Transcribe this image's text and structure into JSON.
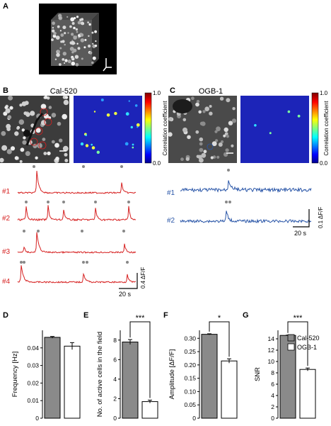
{
  "panels": {
    "A": {
      "label": "A"
    },
    "B": {
      "label": "B",
      "title": "Cal-520",
      "trace_labels": [
        "#1",
        "#2",
        "#3",
        "#4"
      ],
      "scale_y": "0.4 ΔF/F",
      "scale_x": "20 s",
      "colorbar_label": "Correlation coefficient",
      "colorbar_ticks": [
        "1.0",
        "0.0"
      ]
    },
    "C": {
      "label": "C",
      "title": "OGB-1",
      "trace_labels": [
        "#1",
        "#2"
      ],
      "scale_y": "0.1 ΔF/F",
      "scale_x": "20 s",
      "colorbar_label": "Correlation coefficient",
      "colorbar_ticks": [
        "1.0",
        "0.0"
      ]
    },
    "D": {
      "label": "D"
    },
    "E": {
      "label": "E"
    },
    "F": {
      "label": "F"
    },
    "G": {
      "label": "G"
    }
  },
  "legend": [
    "Cal-520",
    "OGB-1"
  ],
  "colors": {
    "cal520_trace": "#d62020",
    "ogb_trace": "#2a56a8",
    "cal520_bar": "#8a8a8a",
    "ogb_bar": "#ffffff",
    "event_dot": "#888888"
  },
  "chart_data": [
    {
      "type": "bar",
      "panel": "D",
      "categories": [
        "Cal-520",
        "OGB-1"
      ],
      "values": [
        0.046,
        0.041
      ],
      "errors": [
        0.0005,
        0.002
      ],
      "ylabel": "Frequency [Hz]",
      "ylim": [
        0,
        0.05
      ],
      "yticks": [
        "0",
        "0.01",
        "0.02",
        "0.03",
        "0.04"
      ],
      "significance": ""
    },
    {
      "type": "bar",
      "panel": "E",
      "categories": [
        "Cal-520",
        "OGB-1"
      ],
      "values": [
        7.8,
        1.7
      ],
      "errors": [
        0.25,
        0.15
      ],
      "ylabel": "No. of active cells in the field",
      "ylim": [
        0,
        9
      ],
      "yticks": [
        "0",
        "2",
        "4",
        "6",
        "8"
      ],
      "significance": "***"
    },
    {
      "type": "bar",
      "panel": "F",
      "categories": [
        "Cal-520",
        "OGB-1"
      ],
      "values": [
        0.315,
        0.215
      ],
      "errors": [
        0.002,
        0.008
      ],
      "ylabel": "Amplitude [ΔF/F]",
      "ylim": [
        0,
        0.33
      ],
      "yticks": [
        "0",
        "0.05",
        "0.10",
        "0.15",
        "0.20",
        "0.25",
        "0.30"
      ],
      "significance": "*"
    },
    {
      "type": "bar",
      "panel": "G",
      "categories": [
        "Cal-520",
        "OGB-1"
      ],
      "values": [
        14.6,
        8.6
      ],
      "errors": [
        0.05,
        0.25
      ],
      "ylabel": "SNR",
      "ylim": [
        0,
        15.5
      ],
      "yticks": [
        "0",
        "2",
        "4",
        "6",
        "8",
        "10",
        "12",
        "14"
      ],
      "significance": "***"
    }
  ]
}
